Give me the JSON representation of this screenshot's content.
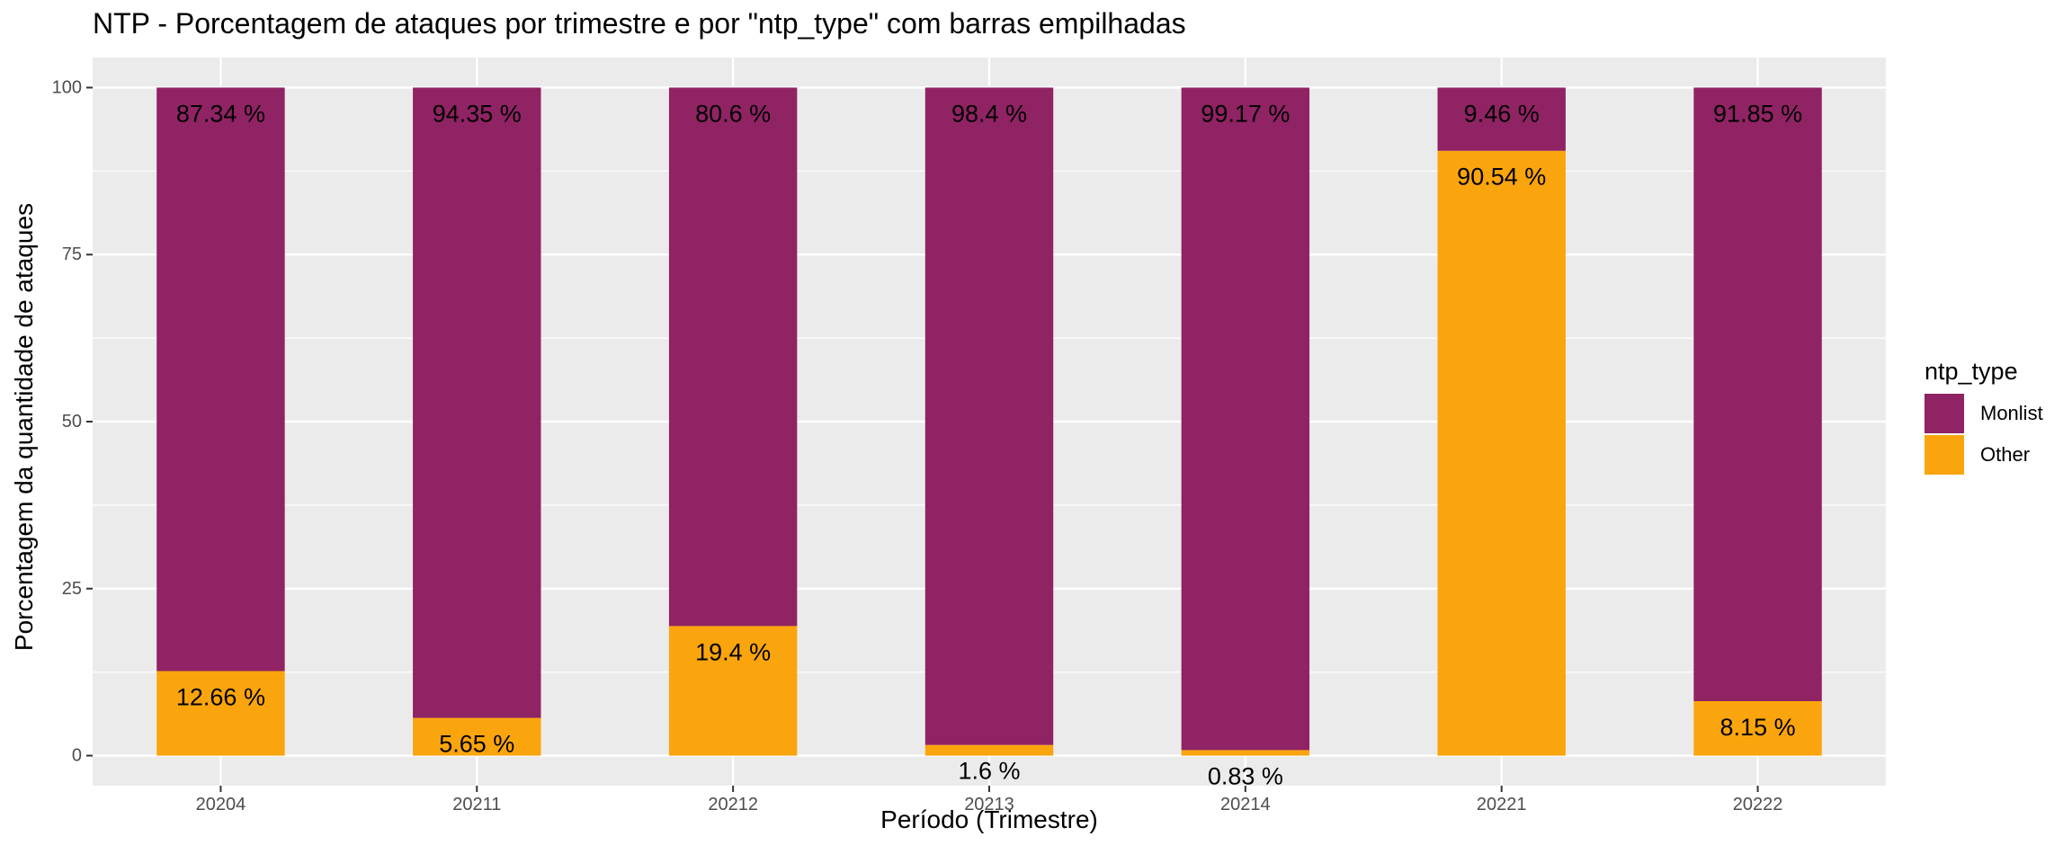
{
  "chart_data": {
    "type": "bar",
    "stacked": true,
    "title": "NTP - Porcentagem de ataques por trimestre e por \"ntp_type\" com barras empilhadas",
    "xlabel": "Período (Trimestre)",
    "ylabel": "Porcentagem da quantidade de ataques",
    "ylim": [
      -4.5,
      104.5
    ],
    "yticks": [
      0,
      25,
      50,
      75,
      100
    ],
    "grid": true,
    "legend_title": "ntp_type",
    "legend_position": "right",
    "categories": [
      "20204",
      "20211",
      "20212",
      "20213",
      "20214",
      "20221",
      "20222"
    ],
    "series": [
      {
        "name": "Monlist",
        "color": "#902363",
        "values": [
          87.34,
          94.35,
          80.6,
          98.4,
          99.17,
          9.46,
          91.85
        ],
        "labels": [
          "87.34 %",
          "94.35 %",
          "80.6 %",
          "98.4 %",
          "99.17 %",
          "9.46 %",
          "91.85 %"
        ]
      },
      {
        "name": "Other",
        "color": "#FAA50D",
        "values": [
          12.66,
          5.65,
          19.4,
          1.6,
          0.83,
          90.54,
          8.15
        ],
        "labels": [
          "12.66 %",
          "5.65 %",
          "19.4 %",
          "1.6 %",
          "0.83 %",
          "90.54 %",
          "8.15 %"
        ]
      }
    ]
  }
}
